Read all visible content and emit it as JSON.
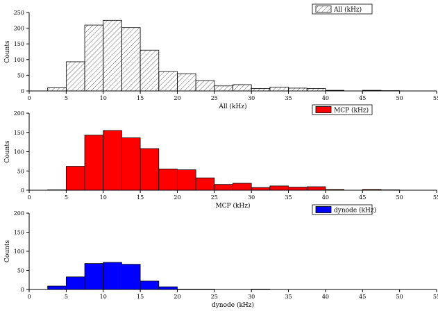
{
  "chart_data": [
    {
      "type": "bar",
      "fill": "hatch",
      "color": "#ffffff",
      "bin_edges": [
        2.5,
        5,
        7.5,
        10,
        12.5,
        15,
        17.5,
        20,
        22.5,
        25,
        27.5,
        30,
        32.5,
        35,
        37.5,
        40,
        42.5,
        45,
        47.5,
        50
      ],
      "values": [
        10,
        93,
        210,
        225,
        202,
        130,
        62,
        55,
        33,
        16,
        20,
        8,
        12,
        9,
        8,
        2,
        0,
        2,
        1
      ],
      "xlabel": "All (kHz)",
      "ylabel": "Counts",
      "legend": "All (kHz)",
      "legend_position": "top-right",
      "xlim": [
        0,
        55
      ],
      "ylim": [
        0,
        250
      ],
      "xticks": [
        "0",
        "5",
        "10",
        "15",
        "20",
        "25",
        "30",
        "35",
        "40",
        "45",
        "50",
        "55"
      ],
      "yticks": [
        "0",
        "50",
        "100",
        "150",
        "200",
        "250"
      ],
      "grid": false
    },
    {
      "type": "bar",
      "fill": "solid",
      "color": "#ff0000",
      "bin_edges": [
        2.5,
        5,
        7.5,
        10,
        12.5,
        15,
        17.5,
        20,
        22.5,
        25,
        27.5,
        30,
        32.5,
        35,
        37.5,
        40,
        42.5,
        45,
        47.5,
        50
      ],
      "values": [
        1,
        62,
        143,
        155,
        136,
        108,
        55,
        53,
        32,
        15,
        18,
        7,
        11,
        8,
        9,
        2,
        0,
        2,
        1
      ],
      "xlabel": "MCP (kHz)",
      "ylabel": "Counts",
      "legend": "MCP (kHz)",
      "legend_position": "top-right",
      "xlim": [
        0,
        55
      ],
      "ylim": [
        0,
        200
      ],
      "xticks": [
        "0",
        "5",
        "10",
        "15",
        "20",
        "25",
        "30",
        "35",
        "40",
        "45",
        "50",
        "55"
      ],
      "yticks": [
        "0",
        "50",
        "100",
        "150",
        "200"
      ],
      "grid": false
    },
    {
      "type": "bar",
      "fill": "solid",
      "color": "#0000ff",
      "bin_edges": [
        2.5,
        5,
        7.5,
        10,
        12.5,
        15,
        17.5,
        20,
        22.5,
        25,
        27.5,
        30,
        32.5,
        35,
        37.5,
        40,
        42.5,
        45,
        47.5,
        50
      ],
      "values": [
        9,
        33,
        68,
        71,
        66,
        22,
        7,
        1,
        1,
        0,
        0,
        1,
        0,
        0,
        0,
        0,
        0,
        0,
        0
      ],
      "xlabel": "dynode (kHz)",
      "ylabel": "Counts",
      "legend": "dynode (kHz)",
      "legend_position": "top-right",
      "xlim": [
        0,
        55
      ],
      "ylim": [
        0,
        200
      ],
      "xticks": [
        "0",
        "5",
        "10",
        "15",
        "20",
        "25",
        "30",
        "35",
        "40",
        "45",
        "50",
        "55"
      ],
      "yticks": [
        "0",
        "50",
        "100",
        "150",
        "200"
      ],
      "grid": false
    }
  ]
}
